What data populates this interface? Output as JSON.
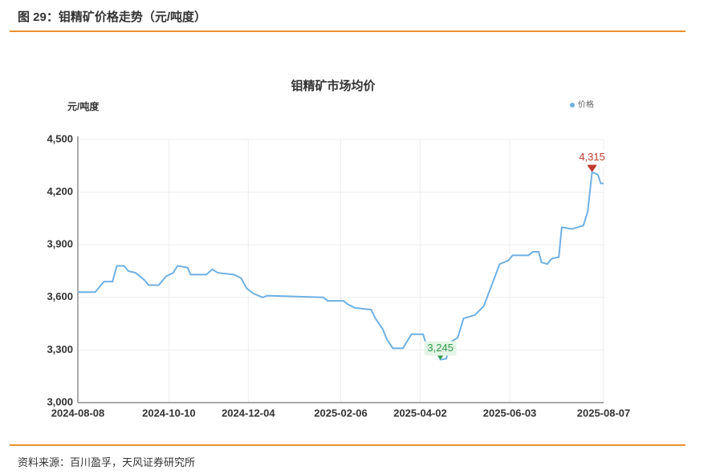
{
  "header": {
    "title": "图 29：钼精矿价格走势（元/吨度）"
  },
  "source": "资料来源：百川盈孚，天风证券研究所",
  "chart_data": {
    "type": "line",
    "title": "钼精矿市场均价",
    "y_label": "元/吨度",
    "legend": "top-right",
    "grid": true,
    "x": [
      "2024-08-08",
      "2024-08-20",
      "2024-08-22",
      "2024-08-26",
      "2024-09-01",
      "2024-09-04",
      "2024-09-09",
      "2024-09-12",
      "2024-09-17",
      "2024-09-23",
      "2024-09-26",
      "2024-10-03",
      "2024-10-08",
      "2024-10-13",
      "2024-10-16",
      "2024-10-23",
      "2024-10-25",
      "2024-11-05",
      "2024-11-09",
      "2024-11-13",
      "2024-11-24",
      "2024-11-29",
      "2024-12-03",
      "2024-12-08",
      "2024-12-14",
      "2024-12-17",
      "2025-01-25",
      "2025-01-28",
      "2025-02-08",
      "2025-02-11",
      "2025-02-16",
      "2025-02-27",
      "2025-03-02",
      "2025-03-07",
      "2025-03-10",
      "2025-03-14",
      "2025-03-21",
      "2025-03-27",
      "2025-04-04",
      "2025-04-07",
      "2025-04-13",
      "2025-04-16",
      "2025-04-20",
      "2025-04-24",
      "2025-04-28",
      "2025-05-02",
      "2025-05-10",
      "2025-05-16",
      "2025-05-22",
      "2025-05-27",
      "2025-06-02",
      "2025-06-05",
      "2025-06-16",
      "2025-06-19",
      "2025-06-23",
      "2025-06-25",
      "2025-06-29",
      "2025-07-02",
      "2025-07-07",
      "2025-07-09",
      "2025-07-16",
      "2025-07-24",
      "2025-07-27",
      "2025-07-30",
      "2025-08-03",
      "2025-08-05",
      "2025-08-07"
    ],
    "series": [
      {
        "name": "价格",
        "color": "#6fb0e2",
        "values": [
          3630,
          3630,
          3650,
          3690,
          3690,
          3780,
          3780,
          3750,
          3740,
          3700,
          3670,
          3670,
          3720,
          3740,
          3780,
          3770,
          3730,
          3730,
          3760,
          3740,
          3730,
          3710,
          3650,
          3620,
          3600,
          3610,
          3600,
          3580,
          3580,
          3560,
          3540,
          3530,
          3480,
          3420,
          3360,
          3310,
          3310,
          3390,
          3390,
          3310,
          3300,
          3245,
          3250,
          3350,
          3370,
          3480,
          3500,
          3550,
          3680,
          3790,
          3810,
          3840,
          3840,
          3860,
          3860,
          3800,
          3790,
          3820,
          3830,
          4000,
          3990,
          4010,
          4090,
          4315,
          4300,
          4250,
          4250
        ],
        "value_labels": [
          null,
          null,
          null,
          null,
          null,
          null,
          null,
          null,
          null,
          null,
          null,
          null,
          null,
          null,
          null,
          null,
          null,
          null,
          null,
          null,
          null,
          null,
          null,
          null,
          null,
          null,
          null,
          null,
          null,
          null,
          null,
          null,
          null,
          null,
          null,
          null,
          null,
          null,
          null,
          null,
          null,
          "3,245",
          null,
          null,
          null,
          null,
          null,
          null,
          null,
          null,
          null,
          null,
          null,
          null,
          null,
          null,
          null,
          null,
          null,
          null,
          null,
          null,
          null,
          "4,315",
          null,
          null,
          null
        ]
      }
    ],
    "xlim": [
      "2024-08-08",
      "2025-08-07"
    ],
    "xticks": [
      "2024-08-08",
      "2024-10-10",
      "2024-12-04",
      "2025-02-06",
      "2025-04-02",
      "2025-06-03",
      "2025-08-07"
    ],
    "ylim": [
      3000,
      4500
    ],
    "yticks": [
      {
        "value": 3000,
        "label": "3,000"
      },
      {
        "value": 3300,
        "label": "3,300"
      },
      {
        "value": 3600,
        "label": "3,600"
      },
      {
        "value": 3900,
        "label": "3,900"
      },
      {
        "value": 4200,
        "label": "4,200"
      },
      {
        "value": 4500,
        "label": "4,500"
      }
    ]
  }
}
